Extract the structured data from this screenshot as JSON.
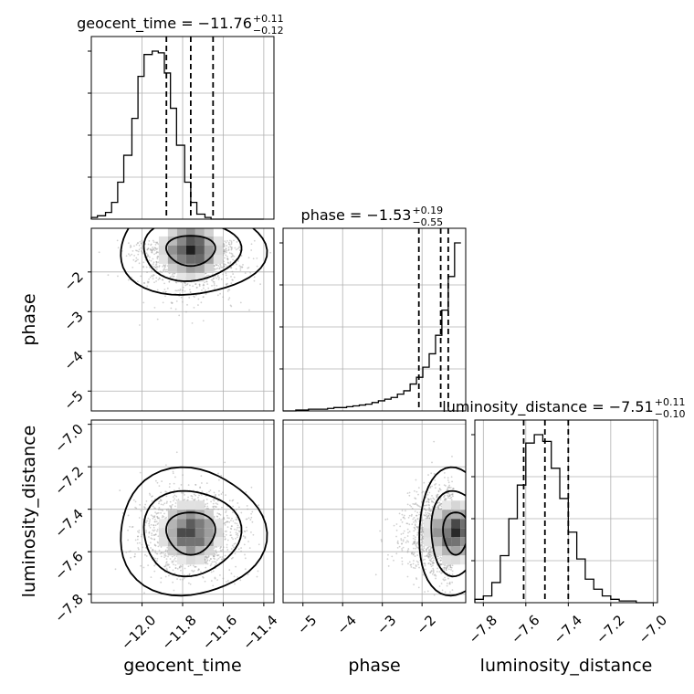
{
  "chart_data": {
    "type": "corner",
    "parameters": [
      "geocent_time",
      "phase",
      "luminosity_distance"
    ],
    "ranges": {
      "geocent_time": [
        -12.25,
        -11.35
      ],
      "phase": [
        -5.5,
        -0.9
      ],
      "luminosity_distance": [
        -7.84,
        -6.98
      ]
    },
    "ticks": {
      "geocent_time": [
        -12.0,
        -11.8,
        -11.6,
        -11.4
      ],
      "phase": [
        -5,
        -4,
        -3,
        -2
      ],
      "luminosity_distance": [
        -7.8,
        -7.6,
        -7.4,
        -7.2,
        -7.0
      ]
    },
    "tick_labels": {
      "geocent_time": [
        "−12.0",
        "−11.8",
        "−11.6",
        "−11.4"
      ],
      "phase": [
        "−5",
        "−4",
        "−3",
        "−2"
      ],
      "luminosity_distance": [
        "−7.8",
        "−7.6",
        "−7.4",
        "−7.2",
        "−7.0"
      ]
    },
    "titles": [
      {
        "param": "geocent_time",
        "prefix": "geocent_time = −11.76",
        "plus": "+0.11",
        "minus": "−0.12"
      },
      {
        "param": "phase",
        "prefix": "phase = −1.53",
        "plus": "+0.19",
        "minus": "−0.55"
      },
      {
        "param": "luminosity_distance",
        "prefix": "luminosity_distance = −7.51",
        "plus": "+0.11",
        "minus": "−0.10"
      }
    ],
    "quantiles": {
      "geocent_time": [
        -11.88,
        -11.76,
        -11.65
      ],
      "phase": [
        -2.08,
        -1.53,
        -1.34
      ],
      "luminosity_distance": [
        -7.61,
        -7.51,
        -7.4
      ]
    },
    "histograms": {
      "geocent_time": {
        "edges": [
          -12.25,
          -12.22,
          -12.18,
          -12.15,
          -12.12,
          -12.09,
          -12.05,
          -12.02,
          -11.99,
          -11.95,
          -11.92,
          -11.89,
          -11.86,
          -11.83,
          -11.79,
          -11.76,
          -11.73,
          -11.69,
          -11.66,
          -11.63,
          -11.6,
          -11.56,
          -11.53,
          -11.5,
          -11.47,
          -11.44,
          -11.4
        ],
        "counts": [
          0.01,
          0.02,
          0.04,
          0.1,
          0.22,
          0.38,
          0.6,
          0.85,
          0.98,
          1.0,
          0.99,
          0.87,
          0.66,
          0.44,
          0.22,
          0.1,
          0.03,
          0.01,
          0.0,
          0.0,
          0,
          0,
          0,
          0,
          0,
          0
        ],
        "note": ""
      },
      "phase": {
        "edges": [
          -5.5,
          -5.34,
          -5.18,
          -5.02,
          -4.86,
          -4.7,
          -4.54,
          -4.38,
          -4.22,
          -4.06,
          -3.9,
          -3.74,
          -3.58,
          -3.42,
          -3.26,
          -3.1,
          -2.94,
          -2.78,
          -2.62,
          -2.46,
          -2.3,
          -2.14,
          -1.98,
          -1.82,
          -1.66,
          -1.5,
          -1.34,
          -1.18,
          -1.02
        ],
        "counts": [
          0.0,
          0.0,
          0.005,
          0.005,
          0.01,
          0.01,
          0.01,
          0.015,
          0.02,
          0.02,
          0.025,
          0.03,
          0.035,
          0.04,
          0.05,
          0.06,
          0.07,
          0.08,
          0.1,
          0.12,
          0.16,
          0.2,
          0.26,
          0.34,
          0.45,
          0.6,
          0.8,
          1.0
        ]
      },
      "luminosity_distance": {
        "edges": [
          -7.84,
          -7.8,
          -7.76,
          -7.72,
          -7.68,
          -7.64,
          -7.6,
          -7.56,
          -7.52,
          -7.48,
          -7.44,
          -7.4,
          -7.36,
          -7.32,
          -7.28,
          -7.24,
          -7.2,
          -7.16,
          -7.12,
          -7.08,
          -7.04,
          -7.0
        ],
        "counts": [
          0.02,
          0.04,
          0.12,
          0.28,
          0.5,
          0.7,
          0.95,
          1.0,
          0.96,
          0.8,
          0.62,
          0.42,
          0.26,
          0.14,
          0.08,
          0.04,
          0.02,
          0.01,
          0.01,
          0.0,
          0.0
        ]
      }
    },
    "pairs": [
      {
        "x": "geocent_time",
        "y": "phase",
        "center": [
          -11.76,
          -1.53
        ],
        "spread": [
          0.12,
          0.6
        ]
      },
      {
        "x": "geocent_time",
        "y": "luminosity_distance",
        "center": [
          -11.76,
          -7.51
        ],
        "spread": [
          0.12,
          0.1
        ]
      },
      {
        "x": "phase",
        "y": "luminosity_distance",
        "center": [
          -1.53,
          -7.51
        ],
        "spread": [
          0.55,
          0.1
        ]
      }
    ],
    "grid": true
  }
}
